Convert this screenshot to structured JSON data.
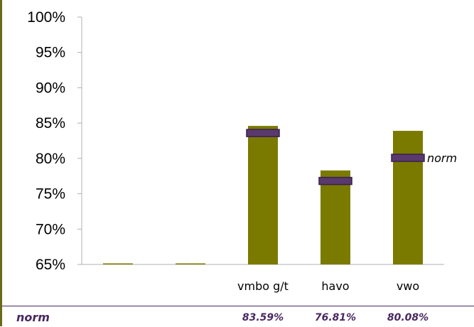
{
  "chart_data": {
    "type": "bar",
    "categories": [
      "",
      "",
      "vmbo g/t",
      "havo",
      "vwo"
    ],
    "values": [
      65,
      65,
      84.6,
      78.3,
      83.9
    ],
    "norm": [
      null,
      null,
      83.59,
      76.81,
      80.08
    ],
    "norm_label": "norm",
    "ylim": [
      65,
      100
    ],
    "yticks": [
      "65%",
      "70%",
      "75%",
      "80%",
      "85%",
      "90%",
      "95%",
      "100%"
    ],
    "ytick_values": [
      65,
      70,
      75,
      80,
      85,
      90,
      95,
      100
    ],
    "legend_placement": "right",
    "grid": false
  },
  "colors": {
    "bar": "#7a7a00",
    "norm_marker_fill": "#5a3a6e",
    "norm_marker_stroke": "#3b1f4f",
    "footer_text": "#4a2860",
    "axis": "#b0b0b0"
  },
  "table": {
    "row_label": "norm",
    "values": [
      "",
      "",
      "83.59%",
      "76.81%",
      "80.08%"
    ]
  }
}
